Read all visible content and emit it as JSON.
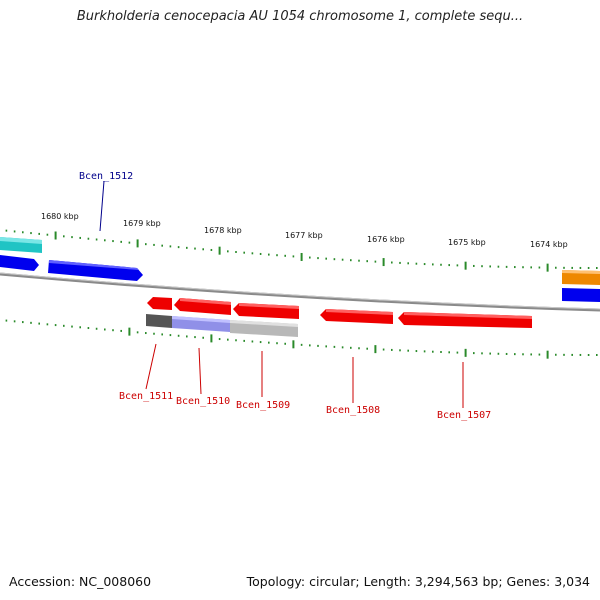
{
  "title": "Burkholderia cenocepacia AU 1054 chromosome 1, complete sequ...",
  "footer": {
    "accession": "Accession: NC_008060",
    "topology": "Topology: circular; Length: 3,294,563 bp; Genes: 3,034"
  },
  "kbp_labels": [
    "1680 kbp",
    "1679 kbp",
    "1678 kbp",
    "1677 kbp",
    "1676 kbp",
    "1675 kbp",
    "1674 kbp"
  ],
  "gene_labels": [
    {
      "text": "Bcen_1512",
      "color": "#00008b"
    },
    {
      "text": "Bcen_1511",
      "color": "#cc0000"
    },
    {
      "text": "Bcen_1510",
      "color": "#cc0000"
    },
    {
      "text": "Bcen_1509",
      "color": "#cc0000"
    },
    {
      "text": "Bcen_1508",
      "color": "#cc0000"
    },
    {
      "text": "Bcen_1507",
      "color": "#cc0000"
    }
  ],
  "colors": {
    "forward_cds": "#0000ee",
    "reverse_cds": "#ee0000",
    "rna": "#20c4c4",
    "other": "#ee8800",
    "pseudo": "#9090e8",
    "gray_feature": "#b8b8b8",
    "dark_feature": "#555555",
    "backbone": "#8a8a8a",
    "ticks": "#2a8a2a"
  }
}
